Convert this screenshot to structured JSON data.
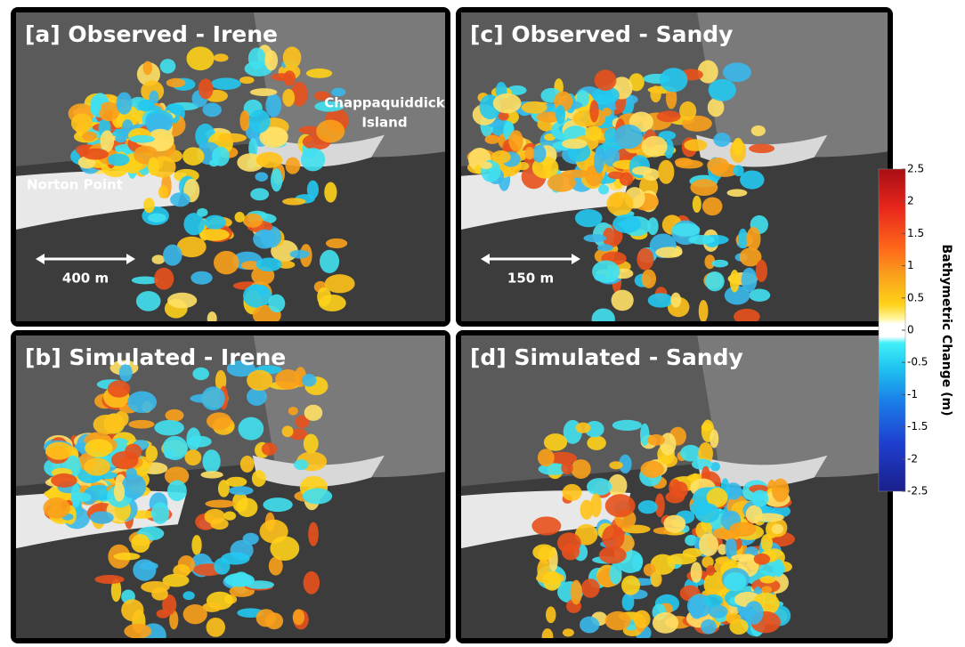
{
  "panels": [
    {
      "title": "[a] Observed - Irene",
      "labels": [
        [
          "Norton Point"
        ],
        [
          "Chappaquiddick",
          "Island"
        ]
      ],
      "scale_bar": "400 m"
    },
    {
      "title": "[c] Observed - Sandy",
      "scale_bar": "150 m"
    },
    {
      "title": "[b] Simulated - Irene"
    },
    {
      "title": "[d] Simulated - Sandy"
    }
  ],
  "colorbar": {
    "title": "Bathymetric Change (m)",
    "lim": [
      -2.5,
      2.5
    ],
    "ticks": [
      2.5,
      2,
      1.5,
      1,
      0.5,
      0,
      -0.5,
      -1,
      -1.5,
      -2,
      -2.5
    ]
  }
}
